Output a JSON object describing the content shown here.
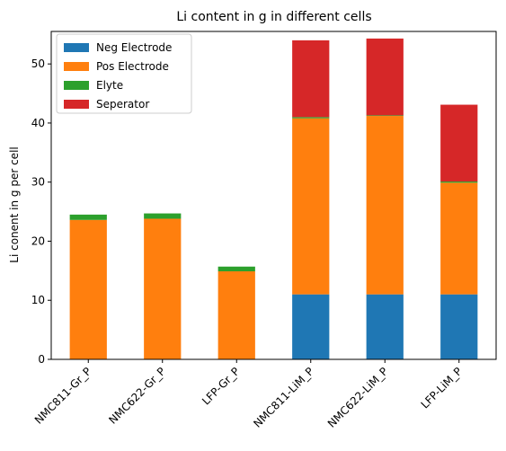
{
  "chart_data": {
    "type": "bar",
    "stacked": true,
    "title": "Li content in g in different cells",
    "xlabel": "",
    "ylabel": "Li conent in g per cell",
    "ylim": [
      0,
      55.5
    ],
    "yticks": [
      0,
      10,
      20,
      30,
      40,
      50
    ],
    "grid": false,
    "legend_position": "upper-left",
    "categories": [
      "NMC811-Gr_P",
      "NMC622-Gr_P",
      "LFP-Gr_P",
      "NMC811-LiM_P",
      "NMC622-LiM_P",
      "LFP-LiM_P"
    ],
    "series": [
      {
        "name": "Neg Electrode",
        "color": "#1f77b4",
        "values": [
          0,
          0,
          0,
          11.0,
          11.0,
          11.0
        ]
      },
      {
        "name": "Pos Electrode",
        "color": "#ff7f0e",
        "values": [
          23.6,
          23.8,
          14.9,
          29.8,
          30.2,
          18.9
        ]
      },
      {
        "name": "Elyte",
        "color": "#2ca02c",
        "values": [
          0.9,
          0.9,
          0.8,
          0.2,
          0.1,
          0.2
        ]
      },
      {
        "name": "Seperator",
        "color": "#d62728",
        "values": [
          0,
          0,
          0,
          13.0,
          13.0,
          13.0
        ]
      }
    ]
  }
}
